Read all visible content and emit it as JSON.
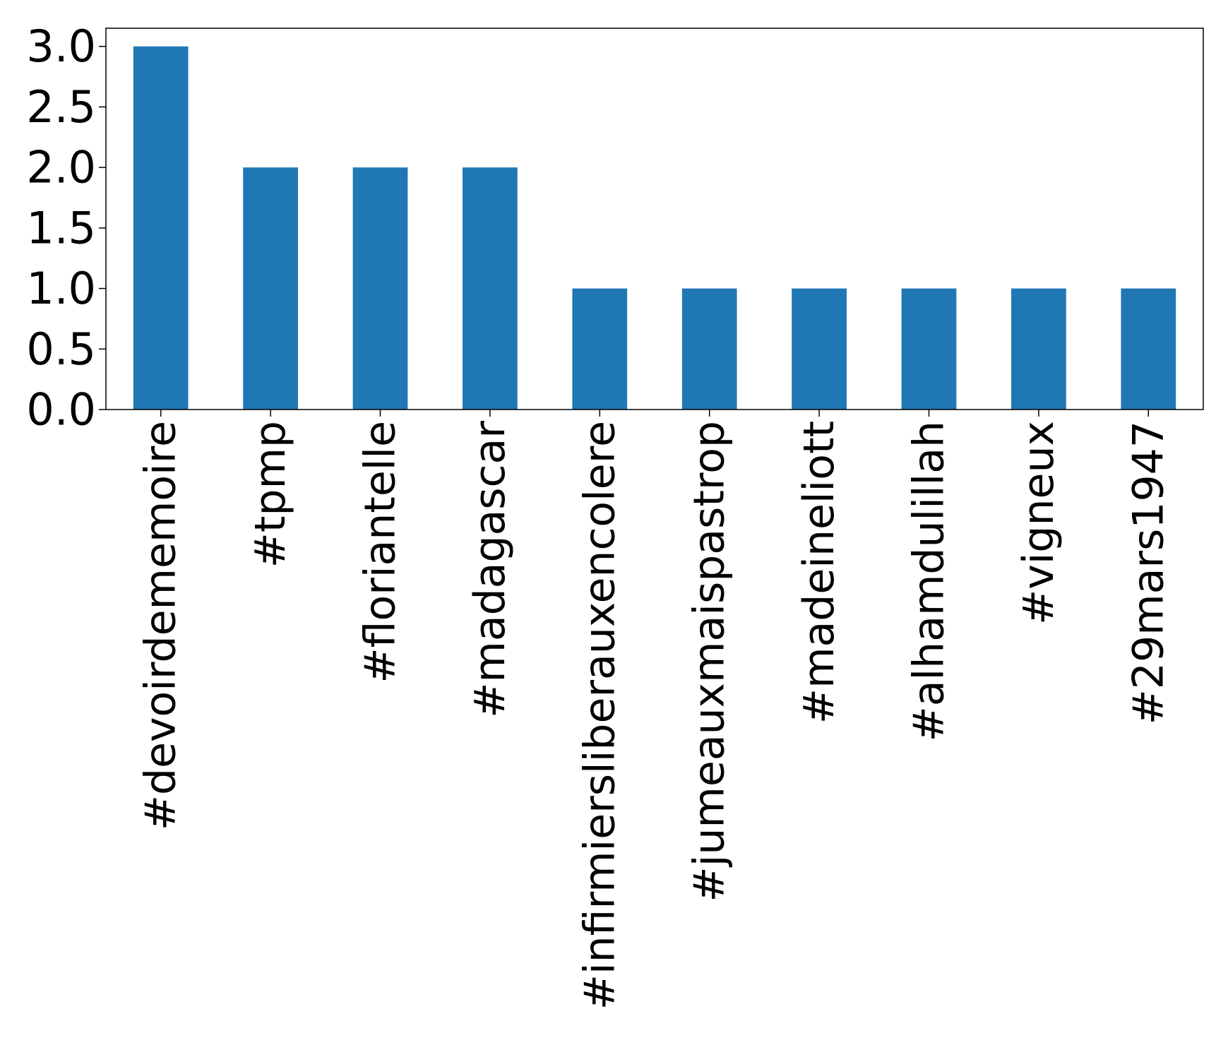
{
  "chart_data": {
    "type": "bar",
    "title": "",
    "xlabel": "",
    "ylabel": "",
    "categories": [
      "#devoirdememoire",
      "#tpmp",
      "#floriantelle",
      "#madagascar",
      "#infirmiersliberauxencolere",
      "#jumeauxmaispastrop",
      "#madeineliott",
      "#alhamdulillah",
      "#vigneux",
      "#29mars1947"
    ],
    "values": [
      3,
      2,
      2,
      2,
      1,
      1,
      1,
      1,
      1,
      1
    ],
    "ylim": [
      0,
      3.15
    ],
    "yticks": [
      0.0,
      0.5,
      1.0,
      1.5,
      2.0,
      2.5,
      3.0
    ],
    "ytick_labels": [
      "0.0",
      "0.5",
      "1.0",
      "1.5",
      "2.0",
      "2.5",
      "3.0"
    ],
    "bar_color": "#1f77b4",
    "grid": false,
    "legend": "none"
  }
}
